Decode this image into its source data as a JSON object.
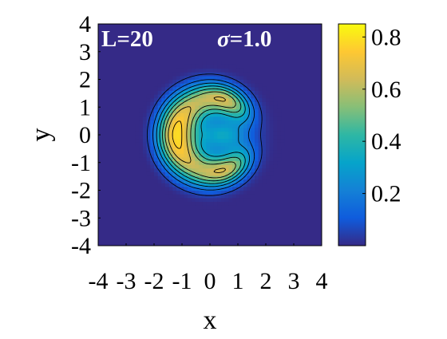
{
  "chart_data": {
    "type": "heatmap",
    "title": "",
    "annotations": {
      "left": "L=20",
      "right_symbol": "σ",
      "right_value": "=1.0"
    },
    "xlabel": "x",
    "ylabel": "y",
    "xlim": [
      -4,
      4
    ],
    "ylim": [
      -4,
      4
    ],
    "xticks": [
      -4,
      -3,
      -2,
      -1,
      0,
      1,
      2,
      3,
      4
    ],
    "yticks": [
      4,
      3,
      2,
      1,
      0,
      -1,
      -2,
      -3,
      -4
    ],
    "xtick_labels": [
      "-4",
      "-3",
      "-2",
      "-1",
      "0",
      "1",
      "2",
      "3",
      "4"
    ],
    "ytick_labels": [
      "4",
      "3",
      "2",
      "1",
      "0",
      "-1",
      "-2",
      "-3",
      "-4"
    ],
    "colorbar": {
      "range": [
        0,
        0.85
      ],
      "ticks": [
        0.2,
        0.4,
        0.6,
        0.8
      ],
      "tick_labels": [
        "0.2",
        "0.4",
        "0.6",
        "0.8"
      ]
    },
    "field": {
      "support_radius": 2.5,
      "max_value": 0.85,
      "peak_region": "crescent opening toward +x, peak near (-1.2, 0) with lobes toward (1.2, ±1)",
      "inner_hole": "local minimum ≈ 0.3 near (0.4, 0)",
      "outside_value": 0.0
    },
    "contour_levels": [
      0.05,
      0.15,
      0.25,
      0.35,
      0.45,
      0.55,
      0.65,
      0.75
    ],
    "grid": false,
    "colormap": "parula",
    "colors": {
      "background": "#352a87",
      "contour_line": "#000000",
      "annotation_text": "#ffffff"
    }
  }
}
